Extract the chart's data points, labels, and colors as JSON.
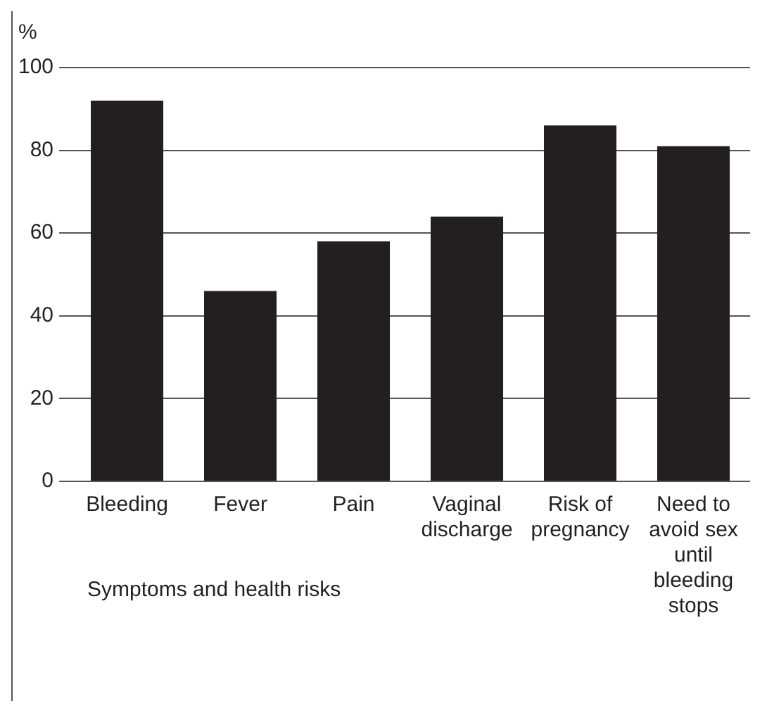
{
  "chart_data": {
    "type": "bar",
    "xlabel": "Symptoms and health risks",
    "ylabel": "%",
    "categories": [
      "Bleeding",
      "Fever",
      "Pain",
      "Vaginal discharge",
      "Risk of pregnancy",
      "Need to avoid sex until bleeding stops"
    ],
    "values": [
      92,
      46,
      58,
      64,
      86,
      81
    ],
    "color": "#231f20",
    "ylim": [
      0,
      100
    ],
    "yticks": [
      0,
      20,
      40,
      60,
      80,
      100
    ],
    "grid": "y"
  }
}
